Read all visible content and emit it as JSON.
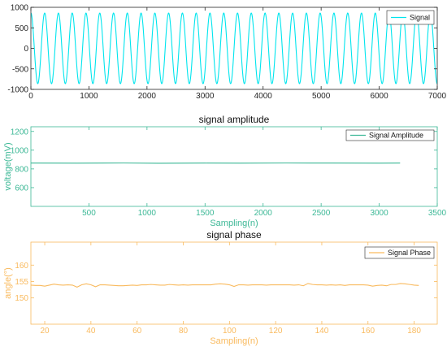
{
  "chart_data": [
    {
      "type": "line",
      "title": "",
      "xlabel": "",
      "ylabel": "",
      "xlim": [
        0,
        7000
      ],
      "ylim": [
        -1000,
        1000
      ],
      "xticks": [
        0,
        1000,
        2000,
        3000,
        4000,
        5000,
        6000,
        7000
      ],
      "yticks": [
        -1000,
        -500,
        0,
        500,
        1000
      ],
      "grid": false,
      "legend": "top-right",
      "color": "#00e5ee",
      "axis_color": "#262626",
      "series": [
        {
          "name": "Signal",
          "amplitude": 860,
          "cycles": 29.5,
          "x_start": 0,
          "x_end": 7000
        }
      ]
    },
    {
      "type": "line",
      "title": "signal amplitude",
      "xlabel": "Sampling(n)",
      "ylabel": "voltage(mV)",
      "xlim": [
        0,
        3500
      ],
      "ylim": [
        400,
        1250
      ],
      "xticks": [
        500,
        1000,
        1500,
        2000,
        2500,
        3000,
        3500
      ],
      "yticks": [
        600,
        800,
        1000,
        1200
      ],
      "grid": false,
      "legend": "top-right",
      "color": "#3cb896",
      "axis_color": "#3cb896",
      "series": [
        {
          "name": "Signal Amplitude",
          "x": [
            0,
            400,
            800,
            1100,
            1500,
            1800,
            2200,
            2600,
            3000,
            3180
          ],
          "y": [
            862,
            861,
            863,
            860,
            862,
            861,
            863,
            862,
            861,
            862
          ]
        }
      ]
    },
    {
      "type": "line",
      "title": "signal phase",
      "xlabel": "Sampling(n)",
      "ylabel": "angle(°)",
      "xlim": [
        14,
        190
      ],
      "ylim": [
        142,
        167
      ],
      "xticks": [
        20,
        40,
        60,
        80,
        100,
        120,
        140,
        160,
        180
      ],
      "yticks": [
        150,
        155,
        160
      ],
      "grid": false,
      "legend": "top-right",
      "color": "#f9ba5e",
      "axis_color": "#f9ba5e",
      "series": [
        {
          "name": "Signal Phase",
          "x": [
            14,
            16,
            18,
            20,
            22,
            24,
            26,
            28,
            30,
            32,
            34,
            36,
            38,
            40,
            42,
            44,
            46,
            48,
            50,
            52,
            54,
            56,
            58,
            60,
            62,
            64,
            66,
            68,
            70,
            72,
            74,
            76,
            78,
            80,
            82,
            84,
            86,
            88,
            90,
            92,
            94,
            96,
            98,
            100,
            102,
            104,
            106,
            108,
            110,
            112,
            114,
            116,
            118,
            120,
            122,
            124,
            126,
            128,
            130,
            132,
            134,
            136,
            138,
            140,
            142,
            144,
            146,
            148,
            150,
            152,
            154,
            156,
            158,
            160,
            162,
            164,
            166,
            168,
            170,
            172,
            174,
            176,
            178,
            180,
            182
          ],
          "y": [
            153.9,
            153.8,
            153.8,
            153.6,
            153.9,
            154.2,
            154.0,
            153.9,
            154.0,
            153.9,
            153.3,
            154.0,
            154.3,
            154.0,
            153.4,
            154.0,
            154.0,
            153.9,
            153.8,
            153.7,
            153.7,
            153.8,
            153.9,
            153.8,
            154.0,
            154.0,
            154.1,
            154.0,
            153.9,
            153.9,
            154.1,
            154.0,
            153.9,
            154.0,
            153.9,
            154.0,
            154.0,
            154.0,
            154.0,
            154.0,
            154.2,
            154.3,
            154.2,
            154.0,
            153.5,
            154.0,
            154.0,
            153.9,
            154.0,
            154.0,
            154.0,
            153.9,
            154.0,
            154.0,
            154.0,
            154.0,
            154.0,
            153.9,
            154.0,
            153.7,
            154.4,
            154.1,
            154.0,
            154.0,
            153.9,
            154.0,
            153.9,
            154.0,
            153.8,
            154.0,
            154.0,
            154.0,
            154.0,
            153.9,
            153.6,
            153.8,
            153.9,
            153.7,
            154.1,
            154.1,
            154.4,
            154.3,
            154.1,
            153.9,
            153.8
          ]
        }
      ]
    }
  ]
}
